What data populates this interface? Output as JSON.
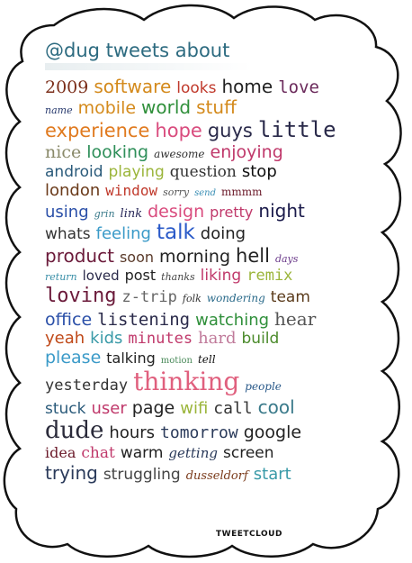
{
  "header": {
    "title": "@dug tweets about"
  },
  "footer": {
    "brand": "TWEETCLOUD"
  },
  "lines": [
    [
      {
        "t": "2009",
        "c": "#7b2e1a",
        "s": 19,
        "f": "serif"
      },
      {
        "t": "software",
        "c": "#d48a1c",
        "s": 20,
        "f": "sans"
      },
      {
        "t": "looks",
        "c": "#c0392b",
        "s": 17,
        "f": "sans"
      },
      {
        "t": "home",
        "c": "#222222",
        "s": 20,
        "f": "sans"
      },
      {
        "t": "love",
        "c": "#6b2a5b",
        "s": 19,
        "f": "mono"
      }
    ],
    [
      {
        "t": "name",
        "c": "#283a6e",
        "s": 11,
        "f": "serif",
        "i": true
      },
      {
        "t": "mobile",
        "c": "#d48a1c",
        "s": 19,
        "f": "sans"
      },
      {
        "t": "world",
        "c": "#2f8f3a",
        "s": 20,
        "f": "sans"
      },
      {
        "t": "stuff",
        "c": "#d48a1c",
        "s": 20,
        "f": "sans"
      }
    ],
    [
      {
        "t": "experience",
        "c": "#e07a1f",
        "s": 21,
        "f": "sans"
      },
      {
        "t": "hope",
        "c": "#d94c7e",
        "s": 21,
        "f": "sans"
      },
      {
        "t": "guys",
        "c": "#2a2a4a",
        "s": 21,
        "f": "sans"
      },
      {
        "t": "little",
        "c": "#2a2a4a",
        "s": 24,
        "f": "mono"
      }
    ],
    [
      {
        "t": "nice",
        "c": "#8a8a6a",
        "s": 19,
        "f": "serif"
      },
      {
        "t": "looking",
        "c": "#2f8f5a",
        "s": 19,
        "f": "sans"
      },
      {
        "t": "awesome",
        "c": "#333333",
        "s": 12,
        "f": "serif",
        "i": true
      },
      {
        "t": "enjoying",
        "c": "#c0396b",
        "s": 19,
        "f": "sans"
      }
    ],
    [
      {
        "t": "android",
        "c": "#2a5a7a",
        "s": 17,
        "f": "sans"
      },
      {
        "t": "playing",
        "c": "#9bb53a",
        "s": 17,
        "f": "sans"
      },
      {
        "t": "question",
        "c": "#333333",
        "s": 17,
        "f": "serif"
      },
      {
        "t": "stop",
        "c": "#111111",
        "s": 18,
        "f": "sans"
      }
    ],
    [
      {
        "t": "london",
        "c": "#6a3a1a",
        "s": 18,
        "f": "sans"
      },
      {
        "t": "window",
        "c": "#c0392b",
        "s": 16,
        "f": "mono"
      },
      {
        "t": "sorry",
        "c": "#555555",
        "s": 11,
        "f": "serif",
        "i": true
      },
      {
        "t": "send",
        "c": "#3a8fb5",
        "s": 10,
        "f": "serif",
        "i": true
      },
      {
        "t": "mmmm",
        "c": "#6b1a2a",
        "s": 12,
        "f": "serif"
      }
    ],
    [
      {
        "t": "using",
        "c": "#2a4fa8",
        "s": 18,
        "f": "sans"
      },
      {
        "t": "grin",
        "c": "#3a7a8a",
        "s": 11,
        "f": "serif",
        "i": true
      },
      {
        "t": "link",
        "c": "#2a2a5a",
        "s": 13,
        "f": "serif",
        "i": true
      },
      {
        "t": "design",
        "c": "#d94c7e",
        "s": 19,
        "f": "sans"
      },
      {
        "t": "pretty",
        "c": "#c0396b",
        "s": 16,
        "f": "sans"
      },
      {
        "t": "night",
        "c": "#1a1a4a",
        "s": 20,
        "f": "sans"
      }
    ],
    [
      {
        "t": "whats",
        "c": "#333333",
        "s": 17,
        "f": "sans"
      },
      {
        "t": "feeling",
        "c": "#3a9ac8",
        "s": 18,
        "f": "sans"
      },
      {
        "t": "talk",
        "c": "#2a5ac8",
        "s": 23,
        "f": "sans"
      },
      {
        "t": "doing",
        "c": "#222222",
        "s": 18,
        "f": "sans"
      }
    ],
    [
      {
        "t": "product",
        "c": "#6b1a3a",
        "s": 20,
        "f": "sans"
      },
      {
        "t": "soon",
        "c": "#5a3a2a",
        "s": 16,
        "f": "sans"
      },
      {
        "t": "morning",
        "c": "#222222",
        "s": 19,
        "f": "sans"
      },
      {
        "t": "hell",
        "c": "#222222",
        "s": 21,
        "f": "sans"
      },
      {
        "t": "days",
        "c": "#6b3a8a",
        "s": 11,
        "f": "serif",
        "i": true
      }
    ],
    [
      {
        "t": "return",
        "c": "#3a8fa8",
        "s": 11,
        "f": "serif",
        "i": true
      },
      {
        "t": "loved",
        "c": "#2a2a4a",
        "s": 15,
        "f": "sans"
      },
      {
        "t": "post",
        "c": "#222222",
        "s": 16,
        "f": "sans"
      },
      {
        "t": "thanks",
        "c": "#444444",
        "s": 11,
        "f": "serif",
        "i": true
      },
      {
        "t": "liking",
        "c": "#c0396b",
        "s": 17,
        "f": "sans"
      },
      {
        "t": "remix",
        "c": "#9bb53a",
        "s": 17,
        "f": "mono"
      }
    ],
    [
      {
        "t": "loving",
        "c": "#6b1a3a",
        "s": 22,
        "f": "mono"
      },
      {
        "t": "z-trip",
        "c": "#666666",
        "s": 17,
        "f": "mono"
      },
      {
        "t": "folk",
        "c": "#333333",
        "s": 11,
        "f": "serif",
        "i": true
      },
      {
        "t": "wondering",
        "c": "#2a6a8a",
        "s": 12,
        "f": "serif",
        "i": true
      },
      {
        "t": "team",
        "c": "#5a3a1a",
        "s": 17,
        "f": "sans"
      }
    ],
    [
      {
        "t": "office",
        "c": "#2a4fa8",
        "s": 19,
        "f": "sans"
      },
      {
        "t": "listening",
        "c": "#2a2a4a",
        "s": 19,
        "f": "mono"
      },
      {
        "t": "watching",
        "c": "#2f8f3a",
        "s": 18,
        "f": "sans"
      },
      {
        "t": "hear",
        "c": "#555555",
        "s": 20,
        "f": "serif"
      }
    ],
    [
      {
        "t": "yeah",
        "c": "#c04a1a",
        "s": 18,
        "f": "sans"
      },
      {
        "t": "kids",
        "c": "#3a9aa8",
        "s": 18,
        "f": "sans"
      },
      {
        "t": "minutes",
        "c": "#c0396b",
        "s": 17,
        "f": "mono"
      },
      {
        "t": "hard",
        "c": "#c07a9a",
        "s": 18,
        "f": "serif"
      },
      {
        "t": "build",
        "c": "#4a8a2a",
        "s": 17,
        "f": "sans"
      }
    ],
    [
      {
        "t": "please",
        "c": "#3a9ac8",
        "s": 19,
        "f": "sans"
      },
      {
        "t": "talking",
        "c": "#222222",
        "s": 16,
        "f": "sans"
      },
      {
        "t": "motion",
        "c": "#4a8a5a",
        "s": 10,
        "f": "serif"
      },
      {
        "t": "tell",
        "c": "#111111",
        "s": 12,
        "f": "serif",
        "i": true
      }
    ],
    [
      {
        "t": "yesterday",
        "c": "#333333",
        "s": 17,
        "f": "mono"
      },
      {
        "t": "thinking",
        "c": "#e0607e",
        "s": 28,
        "f": "serif"
      },
      {
        "t": "people",
        "c": "#2a5a8a",
        "s": 12,
        "f": "serif",
        "i": true
      }
    ],
    [
      {
        "t": "stuck",
        "c": "#2a5a7a",
        "s": 17,
        "f": "sans"
      },
      {
        "t": "user",
        "c": "#c0396b",
        "s": 18,
        "f": "sans"
      },
      {
        "t": "page",
        "c": "#222222",
        "s": 19,
        "f": "sans"
      },
      {
        "t": "wifi",
        "c": "#9bb53a",
        "s": 18,
        "f": "sans"
      },
      {
        "t": "call",
        "c": "#333333",
        "s": 18,
        "f": "mono"
      },
      {
        "t": "cool",
        "c": "#3a7a8a",
        "s": 20,
        "f": "sans"
      }
    ],
    [
      {
        "t": "dude",
        "c": "#2a2a3a",
        "s": 26,
        "f": "serif"
      },
      {
        "t": "hours",
        "c": "#222222",
        "s": 18,
        "f": "sans"
      },
      {
        "t": "tomorrow",
        "c": "#2a3a5a",
        "s": 18,
        "f": "mono"
      },
      {
        "t": "google",
        "c": "#222222",
        "s": 19,
        "f": "sans"
      }
    ],
    [
      {
        "t": "idea",
        "c": "#6b1a2a",
        "s": 16,
        "f": "serif"
      },
      {
        "t": "chat",
        "c": "#c0396b",
        "s": 17,
        "f": "serif"
      },
      {
        "t": "warm",
        "c": "#222222",
        "s": 17,
        "f": "sans"
      },
      {
        "t": "getting",
        "c": "#2a3a5a",
        "s": 15,
        "f": "serif",
        "i": true
      },
      {
        "t": "screen",
        "c": "#222222",
        "s": 17,
        "f": "sans"
      }
    ],
    [
      {
        "t": "trying",
        "c": "#2a3a5a",
        "s": 20,
        "f": "sans"
      },
      {
        "t": "struggling",
        "c": "#444444",
        "s": 17,
        "f": "sans"
      },
      {
        "t": "dusseldorf",
        "c": "#7a3a1a",
        "s": 13,
        "f": "serif",
        "i": true
      },
      {
        "t": "start",
        "c": "#3a9aa8",
        "s": 18,
        "f": "sans"
      }
    ]
  ]
}
